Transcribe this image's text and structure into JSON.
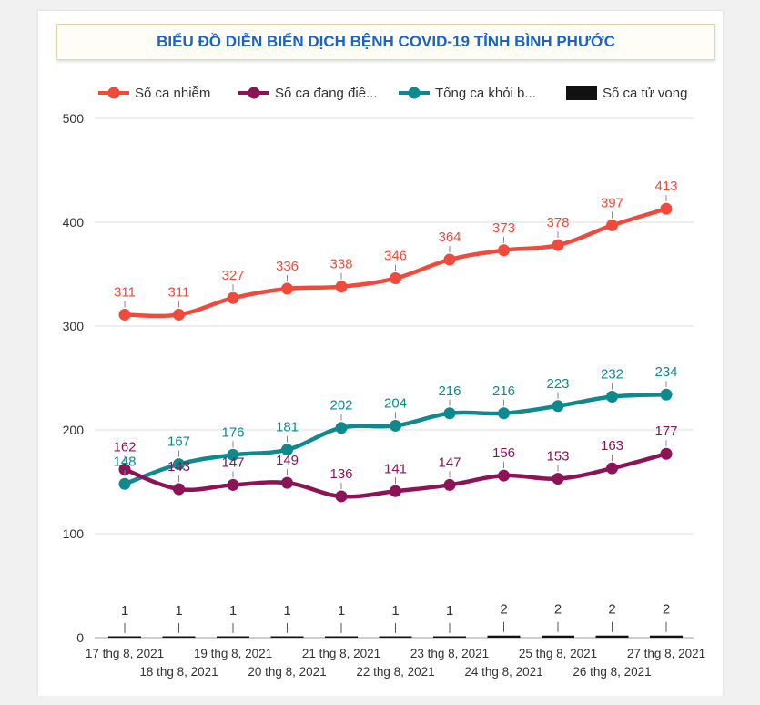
{
  "chart_data": {
    "type": "line",
    "title": "BIỂU ĐỒ DIỄN BIẾN DỊCH BỆNH COVID-19 TỈNH BÌNH PHƯỚC",
    "categories": [
      "17 thg 8, 2021",
      "18 thg 8, 2021",
      "19 thg 8, 2021",
      "20 thg 8, 2021",
      "21 thg 8, 2021",
      "22 thg 8, 2021",
      "23 thg 8, 2021",
      "24 thg 8, 2021",
      "25 thg 8, 2021",
      "26 thg 8, 2021",
      "27 thg 8, 2021"
    ],
    "yticks": [
      "0",
      "100",
      "200",
      "300",
      "400",
      "500"
    ],
    "ylim": [
      0,
      500
    ],
    "xlabel": "",
    "ylabel": "",
    "grid": true,
    "legend_position": "top",
    "series": [
      {
        "name": "Số ca nhiễm",
        "legend_label": "Số ca nhiễm",
        "color": "#f04a3c",
        "values": [
          311,
          311,
          327,
          336,
          338,
          346,
          364,
          373,
          378,
          397,
          413
        ],
        "labels": [
          "311",
          "311",
          "327",
          "336",
          "338",
          "346",
          "364",
          "373",
          "378",
          "397",
          "413"
        ]
      },
      {
        "name": "Số ca đang điều trị",
        "legend_label": "Số ca đang điề...",
        "color": "#8c1456",
        "values": [
          162,
          143,
          147,
          149,
          136,
          141,
          147,
          156,
          153,
          163,
          177
        ],
        "labels": [
          "162",
          "143",
          "147",
          "149",
          "136",
          "141",
          "147",
          "156",
          "153",
          "163",
          "177"
        ]
      },
      {
        "name": "Tổng ca khỏi bệnh",
        "legend_label": "Tổng ca khỏi b...",
        "color": "#0e8a8e",
        "values": [
          148,
          167,
          176,
          181,
          202,
          204,
          216,
          216,
          223,
          232,
          234
        ],
        "labels": [
          "148",
          "167",
          "176",
          "181",
          "202",
          "204",
          "216",
          "216",
          "223",
          "232",
          "234"
        ]
      },
      {
        "name": "Số ca tử vong",
        "legend_label": "Số ca tử vong",
        "color": "#111111",
        "values": [
          1,
          1,
          1,
          1,
          1,
          1,
          1,
          2,
          2,
          2,
          2
        ],
        "labels": [
          "1",
          "1",
          "1",
          "1",
          "1",
          "1",
          "1",
          "2",
          "2",
          "2",
          "2"
        ]
      }
    ]
  }
}
